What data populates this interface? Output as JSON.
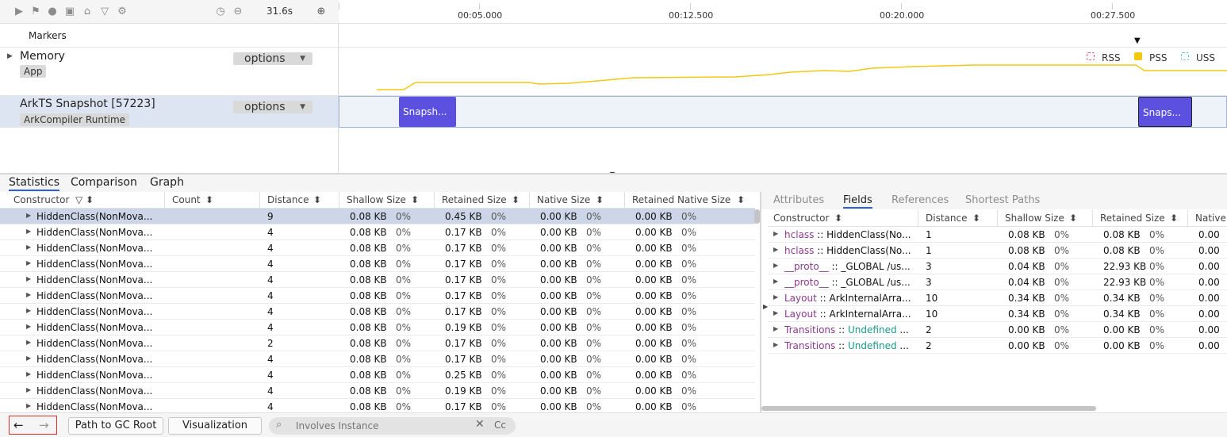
{
  "toolbar": {
    "icons": [
      "play-icon",
      "flag-icon",
      "record-icon",
      "camera-icon",
      "home-icon",
      "filter-icon",
      "settings-icon"
    ],
    "duration": "31.6s",
    "zoom_icons": [
      "timer-icon",
      "zoom-out-icon",
      "zoom-in-icon"
    ]
  },
  "ruler": {
    "ticks": [
      "00:05.000",
      "00:12.500",
      "00:20.000",
      "00:27.500"
    ]
  },
  "lanes": {
    "markers": {
      "title": "Markers"
    },
    "memory": {
      "title": "Memory",
      "tag": "App",
      "options_label": "options"
    },
    "arkts": {
      "title": "ArkTS Snapshot [57223]",
      "tag": "ArkCompiler Runtime",
      "options_label": "options"
    }
  },
  "legend": [
    {
      "label": "RSS",
      "color": "#e05a7a",
      "filled": false
    },
    {
      "label": "PSS",
      "color": "#f2c811",
      "filled": true
    },
    {
      "label": "USS",
      "color": "#6fc3d9",
      "filled": false
    }
  ],
  "snapshots": [
    {
      "label": "Snapsh...",
      "selected": false
    },
    {
      "label": "Snaps...",
      "selected": true
    }
  ],
  "tabs": [
    "Statistics",
    "Comparison",
    "Graph"
  ],
  "active_tab": 0,
  "stats_table": {
    "headers": [
      "Constructor",
      "Count",
      "Distance",
      "Shallow Size",
      "Retained Size",
      "Native Size",
      "Retained Native Size"
    ],
    "rows": [
      {
        "name": "HiddenClass(NonMova...",
        "distance": "9",
        "shallow": "0.08 KB",
        "shallow_pct": "0%",
        "retained": "0.45 KB",
        "retained_pct": "0%",
        "native": "0.00 KB",
        "native_pct": "0%",
        "rnative": "0.00 KB",
        "rnative_pct": "0%"
      },
      {
        "name": "HiddenClass(NonMova...",
        "distance": "4",
        "shallow": "0.08 KB",
        "shallow_pct": "0%",
        "retained": "0.17 KB",
        "retained_pct": "0%",
        "native": "0.00 KB",
        "native_pct": "0%",
        "rnative": "0.00 KB",
        "rnative_pct": "0%"
      },
      {
        "name": "HiddenClass(NonMova...",
        "distance": "4",
        "shallow": "0.08 KB",
        "shallow_pct": "0%",
        "retained": "0.17 KB",
        "retained_pct": "0%",
        "native": "0.00 KB",
        "native_pct": "0%",
        "rnative": "0.00 KB",
        "rnative_pct": "0%"
      },
      {
        "name": "HiddenClass(NonMova...",
        "distance": "4",
        "shallow": "0.08 KB",
        "shallow_pct": "0%",
        "retained": "0.17 KB",
        "retained_pct": "0%",
        "native": "0.00 KB",
        "native_pct": "0%",
        "rnative": "0.00 KB",
        "rnative_pct": "0%"
      },
      {
        "name": "HiddenClass(NonMova...",
        "distance": "4",
        "shallow": "0.08 KB",
        "shallow_pct": "0%",
        "retained": "0.17 KB",
        "retained_pct": "0%",
        "native": "0.00 KB",
        "native_pct": "0%",
        "rnative": "0.00 KB",
        "rnative_pct": "0%"
      },
      {
        "name": "HiddenClass(NonMova...",
        "distance": "4",
        "shallow": "0.08 KB",
        "shallow_pct": "0%",
        "retained": "0.17 KB",
        "retained_pct": "0%",
        "native": "0.00 KB",
        "native_pct": "0%",
        "rnative": "0.00 KB",
        "rnative_pct": "0%"
      },
      {
        "name": "HiddenClass(NonMova...",
        "distance": "4",
        "shallow": "0.08 KB",
        "shallow_pct": "0%",
        "retained": "0.17 KB",
        "retained_pct": "0%",
        "native": "0.00 KB",
        "native_pct": "0%",
        "rnative": "0.00 KB",
        "rnative_pct": "0%"
      },
      {
        "name": "HiddenClass(NonMova...",
        "distance": "4",
        "shallow": "0.08 KB",
        "shallow_pct": "0%",
        "retained": "0.19 KB",
        "retained_pct": "0%",
        "native": "0.00 KB",
        "native_pct": "0%",
        "rnative": "0.00 KB",
        "rnative_pct": "0%"
      },
      {
        "name": "HiddenClass(NonMova...",
        "distance": "2",
        "shallow": "0.08 KB",
        "shallow_pct": "0%",
        "retained": "0.17 KB",
        "retained_pct": "0%",
        "native": "0.00 KB",
        "native_pct": "0%",
        "rnative": "0.00 KB",
        "rnative_pct": "0%"
      },
      {
        "name": "HiddenClass(NonMova...",
        "distance": "4",
        "shallow": "0.08 KB",
        "shallow_pct": "0%",
        "retained": "0.17 KB",
        "retained_pct": "0%",
        "native": "0.00 KB",
        "native_pct": "0%",
        "rnative": "0.00 KB",
        "rnative_pct": "0%"
      },
      {
        "name": "HiddenClass(NonMova...",
        "distance": "4",
        "shallow": "0.08 KB",
        "shallow_pct": "0%",
        "retained": "0.25 KB",
        "retained_pct": "0%",
        "native": "0.00 KB",
        "native_pct": "0%",
        "rnative": "0.00 KB",
        "rnative_pct": "0%"
      },
      {
        "name": "HiddenClass(NonMova...",
        "distance": "4",
        "shallow": "0.08 KB",
        "shallow_pct": "0%",
        "retained": "0.19 KB",
        "retained_pct": "0%",
        "native": "0.00 KB",
        "native_pct": "0%",
        "rnative": "0.00 KB",
        "rnative_pct": "0%"
      },
      {
        "name": "HiddenClass(NonMova...",
        "distance": "4",
        "shallow": "0.08 KB",
        "shallow_pct": "0%",
        "retained": "0.17 KB",
        "retained_pct": "0%",
        "native": "0.00 KB",
        "native_pct": "0%",
        "rnative": "0.00 KB",
        "rnative_pct": "0%"
      }
    ]
  },
  "subtabs": [
    "Attributes",
    "Fields",
    "References",
    "Shortest Paths"
  ],
  "active_subtab": 1,
  "fields_table": {
    "headers": [
      "Constructor",
      "Distance",
      "Shallow Size",
      "Retained Size",
      "Native"
    ],
    "rows": [
      {
        "key": "hclass",
        "sep": " :: ",
        "value": "HiddenClass(No...",
        "value_teal": false,
        "distance": "1",
        "shallow": "0.08 KB",
        "shallow_pct": "0%",
        "retained": "0.08 KB",
        "retained_pct": "0%",
        "native": "0.00"
      },
      {
        "key": "hclass",
        "sep": " :: ",
        "value": "HiddenClass(No...",
        "value_teal": false,
        "distance": "1",
        "shallow": "0.08 KB",
        "shallow_pct": "0%",
        "retained": "0.08 KB",
        "retained_pct": "0%",
        "native": "0.00"
      },
      {
        "key": "__proto__",
        "sep": " :: ",
        "value": "_GLOBAL /us...",
        "value_teal": false,
        "distance": "3",
        "shallow": "0.04 KB",
        "shallow_pct": "0%",
        "retained": "22.93 KB",
        "retained_pct": "0%",
        "native": "0.00"
      },
      {
        "key": "__proto__",
        "sep": " :: ",
        "value": "_GLOBAL /us...",
        "value_teal": false,
        "distance": "3",
        "shallow": "0.04 KB",
        "shallow_pct": "0%",
        "retained": "22.93 KB",
        "retained_pct": "0%",
        "native": "0.00"
      },
      {
        "key": "Layout",
        "sep": " :: ",
        "value": "ArkInternalArra...",
        "value_teal": false,
        "distance": "10",
        "shallow": "0.34 KB",
        "shallow_pct": "0%",
        "retained": "0.34 KB",
        "retained_pct": "0%",
        "native": "0.00"
      },
      {
        "key": "Layout",
        "sep": " :: ",
        "value": "ArkInternalArra...",
        "value_teal": false,
        "distance": "10",
        "shallow": "0.34 KB",
        "shallow_pct": "0%",
        "retained": "0.34 KB",
        "retained_pct": "0%",
        "native": "0.00"
      },
      {
        "key": "Transitions",
        "sep": " :: ",
        "value": "Undefined",
        "suffix": " ...",
        "value_teal": true,
        "distance": "2",
        "shallow": "0.00 KB",
        "shallow_pct": "0%",
        "retained": "0.00 KB",
        "retained_pct": "0%",
        "native": "0.00"
      },
      {
        "key": "Transitions",
        "sep": " :: ",
        "value": "Undefined",
        "suffix": " ...",
        "value_teal": true,
        "distance": "2",
        "shallow": "0.00 KB",
        "shallow_pct": "0%",
        "retained": "0.00 KB",
        "retained_pct": "0%",
        "native": "0.00"
      }
    ]
  },
  "footer": {
    "back_icon": "arrow-left-icon",
    "forward_icon": "arrow-right-icon",
    "path_button": "Path to GC Root",
    "visualization_button": "Visualization",
    "search_placeholder": "Involves Instance",
    "case_label": "Cc"
  }
}
